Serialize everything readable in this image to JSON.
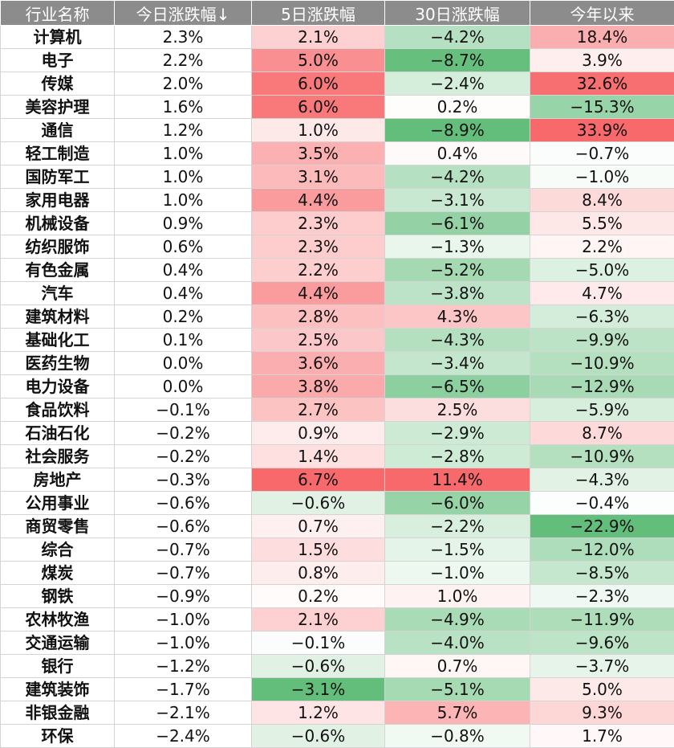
{
  "chart_data": {
    "type": "table",
    "columns": [
      "行业名称",
      "今日涨跌幅↓",
      "5日涨跌幅",
      "30日涨跌幅",
      "今年以来"
    ],
    "rows": [
      [
        "计算机",
        "2.3%",
        "2.1%",
        "−4.2%",
        "18.4%"
      ],
      [
        "电子",
        "2.2%",
        "5.0%",
        "−8.7%",
        "3.9%"
      ],
      [
        "传媒",
        "2.0%",
        "6.0%",
        "−2.4%",
        "32.6%"
      ],
      [
        "美容护理",
        "1.6%",
        "6.0%",
        "0.2%",
        "−15.3%"
      ],
      [
        "通信",
        "1.2%",
        "1.0%",
        "−8.9%",
        "33.9%"
      ],
      [
        "轻工制造",
        "1.0%",
        "3.5%",
        "0.4%",
        "−0.7%"
      ],
      [
        "国防军工",
        "1.0%",
        "3.1%",
        "−4.2%",
        "−1.0%"
      ],
      [
        "家用电器",
        "1.0%",
        "4.4%",
        "−3.1%",
        "8.4%"
      ],
      [
        "机械设备",
        "0.9%",
        "2.3%",
        "−6.1%",
        "5.5%"
      ],
      [
        "纺织服饰",
        "0.6%",
        "2.3%",
        "−1.3%",
        "2.2%"
      ],
      [
        "有色金属",
        "0.4%",
        "2.2%",
        "−5.2%",
        "−5.0%"
      ],
      [
        "汽车",
        "0.4%",
        "4.4%",
        "−3.8%",
        "4.7%"
      ],
      [
        "建筑材料",
        "0.2%",
        "2.8%",
        "4.3%",
        "−6.3%"
      ],
      [
        "基础化工",
        "0.1%",
        "2.5%",
        "−4.3%",
        "−9.9%"
      ],
      [
        "医药生物",
        "0.0%",
        "3.6%",
        "−3.4%",
        "−10.9%"
      ],
      [
        "电力设备",
        "0.0%",
        "3.8%",
        "−6.5%",
        "−12.9%"
      ],
      [
        "食品饮料",
        "−0.1%",
        "2.7%",
        "2.5%",
        "−5.9%"
      ],
      [
        "石油石化",
        "−0.2%",
        "0.9%",
        "−2.9%",
        "8.7%"
      ],
      [
        "社会服务",
        "−0.2%",
        "1.4%",
        "−2.8%",
        "−10.9%"
      ],
      [
        "房地产",
        "−0.3%",
        "6.7%",
        "11.4%",
        "−4.3%"
      ],
      [
        "公用事业",
        "−0.6%",
        "−0.6%",
        "−6.0%",
        "−0.4%"
      ],
      [
        "商贸零售",
        "−0.6%",
        "0.7%",
        "−2.2%",
        "−22.9%"
      ],
      [
        "综合",
        "−0.7%",
        "1.5%",
        "−1.5%",
        "−12.0%"
      ],
      [
        "煤炭",
        "−0.7%",
        "0.8%",
        "−1.0%",
        "−8.5%"
      ],
      [
        "钢铁",
        "−0.9%",
        "0.2%",
        "1.0%",
        "−2.3%"
      ],
      [
        "农林牧渔",
        "−1.0%",
        "2.1%",
        "−4.9%",
        "−11.9%"
      ],
      [
        "交通运输",
        "−1.0%",
        "−0.1%",
        "−4.0%",
        "−9.6%"
      ],
      [
        "银行",
        "−1.2%",
        "−0.6%",
        "0.7%",
        "−3.7%"
      ],
      [
        "建筑装饰",
        "−1.7%",
        "−3.1%",
        "−5.1%",
        "5.0%"
      ],
      [
        "非银金融",
        "−2.1%",
        "1.2%",
        "5.7%",
        "9.3%"
      ],
      [
        "环保",
        "−2.4%",
        "−0.6%",
        "−0.8%",
        "1.7%"
      ]
    ]
  },
  "colors": {
    "header_bg": "#8c8c8c",
    "header_text": "#ffffff",
    "positive": "#f8696b",
    "negative": "#63be7b",
    "neutral": "#ffffff"
  }
}
